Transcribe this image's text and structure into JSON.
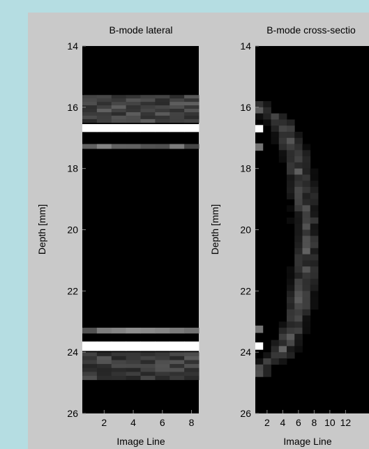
{
  "chart_data": [
    {
      "type": "heatmap",
      "title": "B-mode lateral",
      "xlabel": "Image Line",
      "ylabel": "Depth [mm]",
      "xticks": [
        2,
        4,
        6,
        8
      ],
      "yticks": [
        14,
        16,
        18,
        20,
        22,
        24,
        26
      ],
      "xlim": [
        0.5,
        8.5
      ],
      "ylim": [
        14,
        26
      ],
      "colormap": "gray",
      "reflectors": [
        {
          "depth_start": 15.6,
          "depth_end": 16.5,
          "intensity": 0.28
        },
        {
          "depth_start": 16.55,
          "depth_end": 16.8,
          "intensity": 1.0
        },
        {
          "depth_start": 17.2,
          "depth_end": 17.35,
          "intensity": 0.42
        },
        {
          "depth_start": 23.2,
          "depth_end": 23.38,
          "intensity": 0.42
        },
        {
          "depth_start": 23.65,
          "depth_end": 23.95,
          "intensity": 1.0
        },
        {
          "depth_start": 24.0,
          "depth_end": 24.9,
          "intensity": 0.26
        }
      ]
    },
    {
      "type": "heatmap",
      "title": "B-mode cross-sectio",
      "xlabel": "Image Line",
      "ylabel": "Depth [mm]",
      "xticks": [
        2,
        4,
        6,
        8,
        10,
        12
      ],
      "yticks": [
        14,
        16,
        18,
        20,
        22,
        24,
        26
      ],
      "xlim": [
        0.5,
        16.5
      ],
      "ylim": [
        14,
        26
      ],
      "colormap": "gray",
      "arc": {
        "center_depth": 20.2,
        "edge_line": 1,
        "apex_line": 7,
        "apex_depth_range": [
          18.2,
          22.2
        ],
        "band_width_lines": 2.2,
        "peak_intensity": 0.3
      },
      "bright_echoes": [
        {
          "line": 1,
          "depth": 16.7,
          "intensity": 1.0
        },
        {
          "line": 1,
          "depth": 23.8,
          "intensity": 1.0
        },
        {
          "line": 1,
          "depth": 17.3,
          "intensity": 0.45
        },
        {
          "line": 1,
          "depth": 23.25,
          "intensity": 0.45
        }
      ]
    }
  ]
}
